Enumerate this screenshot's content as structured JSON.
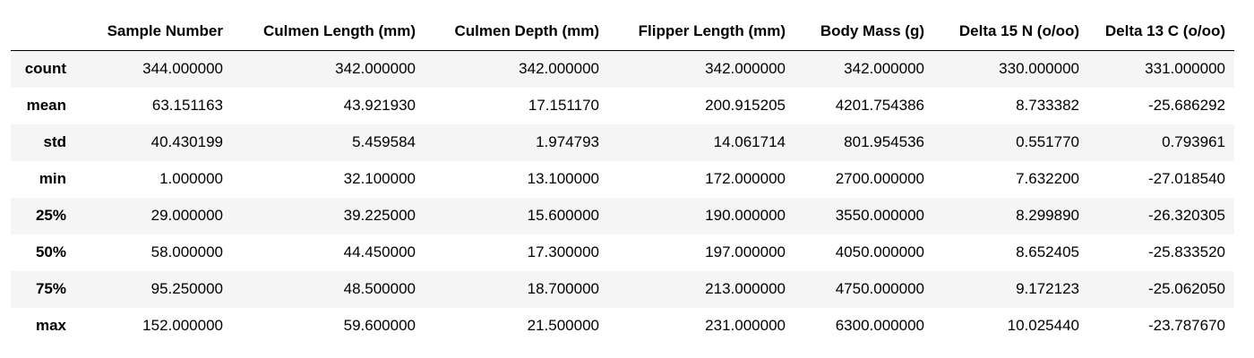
{
  "table": {
    "columns": [
      "",
      "Sample Number",
      "Culmen Length (mm)",
      "Culmen Depth (mm)",
      "Flipper Length (mm)",
      "Body Mass (g)",
      "Delta 15 N (o/oo)",
      "Delta 13 C (o/oo)"
    ],
    "rows": [
      {
        "label": "count",
        "cells": [
          "344.000000",
          "342.000000",
          "342.000000",
          "342.000000",
          "342.000000",
          "330.000000",
          "331.000000"
        ]
      },
      {
        "label": "mean",
        "cells": [
          "63.151163",
          "43.921930",
          "17.151170",
          "200.915205",
          "4201.754386",
          "8.733382",
          "-25.686292"
        ]
      },
      {
        "label": "std",
        "cells": [
          "40.430199",
          "5.459584",
          "1.974793",
          "14.061714",
          "801.954536",
          "0.551770",
          "0.793961"
        ]
      },
      {
        "label": "min",
        "cells": [
          "1.000000",
          "32.100000",
          "13.100000",
          "172.000000",
          "2700.000000",
          "7.632200",
          "-27.018540"
        ]
      },
      {
        "label": "25%",
        "cells": [
          "29.000000",
          "39.225000",
          "15.600000",
          "190.000000",
          "3550.000000",
          "8.299890",
          "-26.320305"
        ]
      },
      {
        "label": "50%",
        "cells": [
          "58.000000",
          "44.450000",
          "17.300000",
          "197.000000",
          "4050.000000",
          "8.652405",
          "-25.833520"
        ]
      },
      {
        "label": "75%",
        "cells": [
          "95.250000",
          "48.500000",
          "18.700000",
          "213.000000",
          "4750.000000",
          "9.172123",
          "-25.062050"
        ]
      },
      {
        "label": "max",
        "cells": [
          "152.000000",
          "59.600000",
          "21.500000",
          "231.000000",
          "6300.000000",
          "10.025440",
          "-23.787670"
        ]
      }
    ]
  }
}
